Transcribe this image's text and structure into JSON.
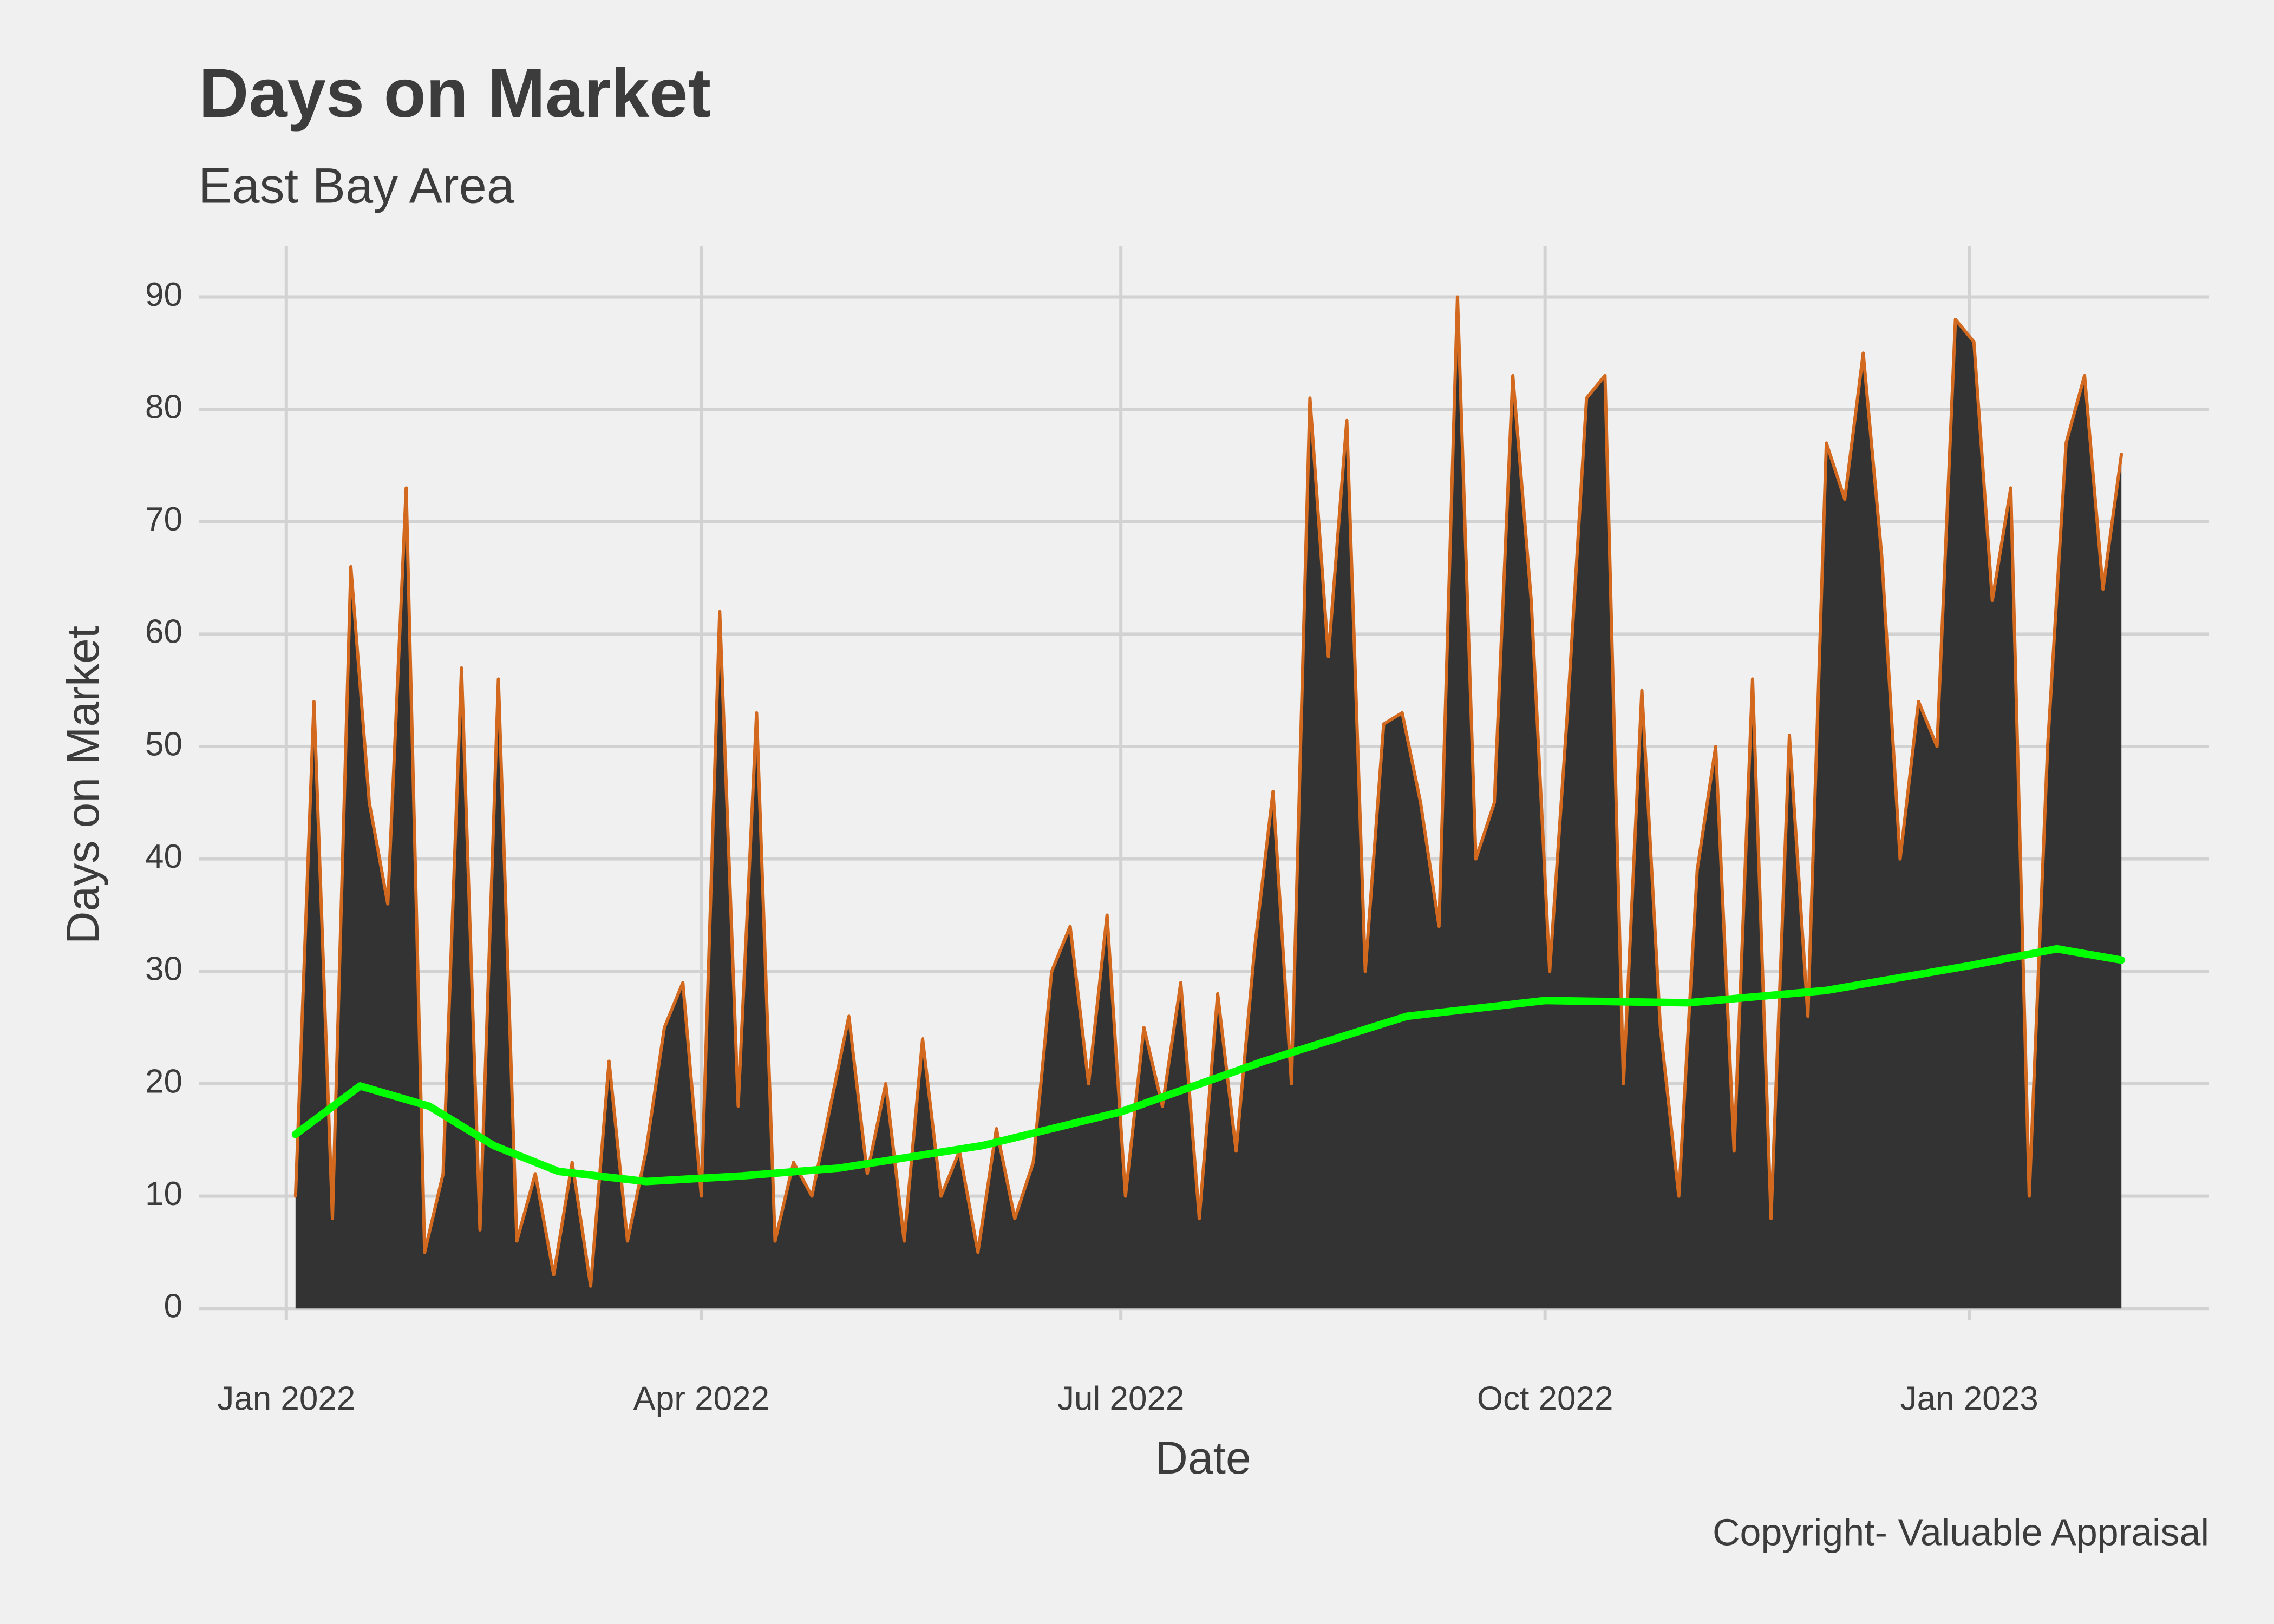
{
  "chart_data": {
    "type": "area",
    "title": "Days on Market",
    "subtitle": "East Bay Area",
    "xlabel": "Date",
    "ylabel": "Days on Market",
    "caption": "Copyright- Valuable Appraisal",
    "xlim": [
      "2021-12-13",
      "2023-02-22"
    ],
    "xticks": [
      {
        "value": "2022-01-01",
        "label": "Jan 2022"
      },
      {
        "value": "2022-04-01",
        "label": "Apr 2022"
      },
      {
        "value": "2022-07-01",
        "label": "Jul 2022"
      },
      {
        "value": "2022-10-01",
        "label": "Oct 2022"
      },
      {
        "value": "2023-01-01",
        "label": "Jan 2023"
      }
    ],
    "ylim": [
      -1,
      94.5
    ],
    "yticks": [
      0,
      10,
      20,
      30,
      40,
      50,
      60,
      70,
      80,
      90
    ],
    "grid": true,
    "background": "#f0f0f0",
    "series": [
      {
        "color": "#d2691e",
        "fill": "#333333",
        "x": [
          "2022-01-03",
          "2022-01-07",
          "2022-01-11",
          "2022-01-15",
          "2022-01-19",
          "2022-01-23",
          "2022-01-27",
          "2022-01-31",
          "2022-02-04",
          "2022-02-08",
          "2022-02-12",
          "2022-02-16",
          "2022-02-20",
          "2022-02-24",
          "2022-02-28",
          "2022-03-04",
          "2022-03-08",
          "2022-03-12",
          "2022-03-16",
          "2022-03-20",
          "2022-03-24",
          "2022-03-28",
          "2022-04-01",
          "2022-04-05",
          "2022-04-09",
          "2022-04-13",
          "2022-04-17",
          "2022-04-21",
          "2022-04-25",
          "2022-04-29",
          "2022-05-03",
          "2022-05-07",
          "2022-05-11",
          "2022-05-15",
          "2022-05-19",
          "2022-05-23",
          "2022-05-27",
          "2022-05-31",
          "2022-06-04",
          "2022-06-08",
          "2022-06-12",
          "2022-06-16",
          "2022-06-20",
          "2022-06-24",
          "2022-06-28",
          "2022-07-02",
          "2022-07-06",
          "2022-07-10",
          "2022-07-14",
          "2022-07-18",
          "2022-07-22",
          "2022-07-26",
          "2022-07-30",
          "2022-08-03",
          "2022-08-07",
          "2022-08-11",
          "2022-08-15",
          "2022-08-19",
          "2022-08-23",
          "2022-08-27",
          "2022-08-31",
          "2022-09-04",
          "2022-09-08",
          "2022-09-12",
          "2022-09-16",
          "2022-09-20",
          "2022-09-24",
          "2022-09-28",
          "2022-10-02",
          "2022-10-06",
          "2022-10-10",
          "2022-10-14",
          "2022-10-18",
          "2022-10-22",
          "2022-10-26",
          "2022-10-30",
          "2022-11-03",
          "2022-11-07",
          "2022-11-11",
          "2022-11-15",
          "2022-11-19",
          "2022-11-23",
          "2022-11-27",
          "2022-12-01",
          "2022-12-05",
          "2022-12-09",
          "2022-12-13",
          "2022-12-17",
          "2022-12-21",
          "2022-12-25",
          "2022-12-29",
          "2023-01-02",
          "2023-01-06",
          "2023-01-10",
          "2023-01-14",
          "2023-01-18",
          "2023-01-22",
          "2023-01-26",
          "2023-01-30",
          "2023-02-03"
        ],
        "values": [
          10,
          54,
          8,
          66,
          45,
          36,
          73,
          5,
          12,
          57,
          7,
          56,
          6,
          12,
          3,
          13,
          2,
          22,
          6,
          14,
          25,
          29,
          10,
          62,
          18,
          53,
          6,
          13,
          10,
          18,
          26,
          12,
          20,
          6,
          24,
          10,
          14,
          5,
          16,
          8,
          13,
          30,
          34,
          20,
          35,
          10,
          25,
          18,
          29,
          8,
          28,
          14,
          32,
          46,
          20,
          81,
          58,
          79,
          30,
          52,
          53,
          45,
          34,
          90,
          40,
          45,
          83,
          63,
          30,
          54,
          81,
          83,
          20,
          55,
          25,
          10,
          39,
          50,
          14,
          56,
          8,
          51,
          26,
          77,
          72,
          85,
          67,
          40,
          54,
          50,
          88,
          86,
          63,
          73,
          10,
          50,
          77,
          83,
          64,
          76
        ]
      },
      {
        "color": "#00ff00",
        "smooth": true,
        "x": [
          "2022-01-03",
          "2022-01-17",
          "2022-02-01",
          "2022-02-15",
          "2022-03-01",
          "2022-03-20",
          "2022-04-10",
          "2022-05-01",
          "2022-06-01",
          "2022-07-01",
          "2022-08-01",
          "2022-09-01",
          "2022-10-01",
          "2022-11-01",
          "2022-12-01",
          "2023-01-01",
          "2023-01-20",
          "2023-02-03"
        ],
        "values": [
          15.5,
          19.8,
          18,
          14.5,
          12.2,
          11.3,
          11.8,
          12.5,
          14.5,
          17.5,
          22,
          26,
          27.4,
          27.2,
          28.3,
          30.5,
          32,
          31
        ]
      }
    ]
  }
}
